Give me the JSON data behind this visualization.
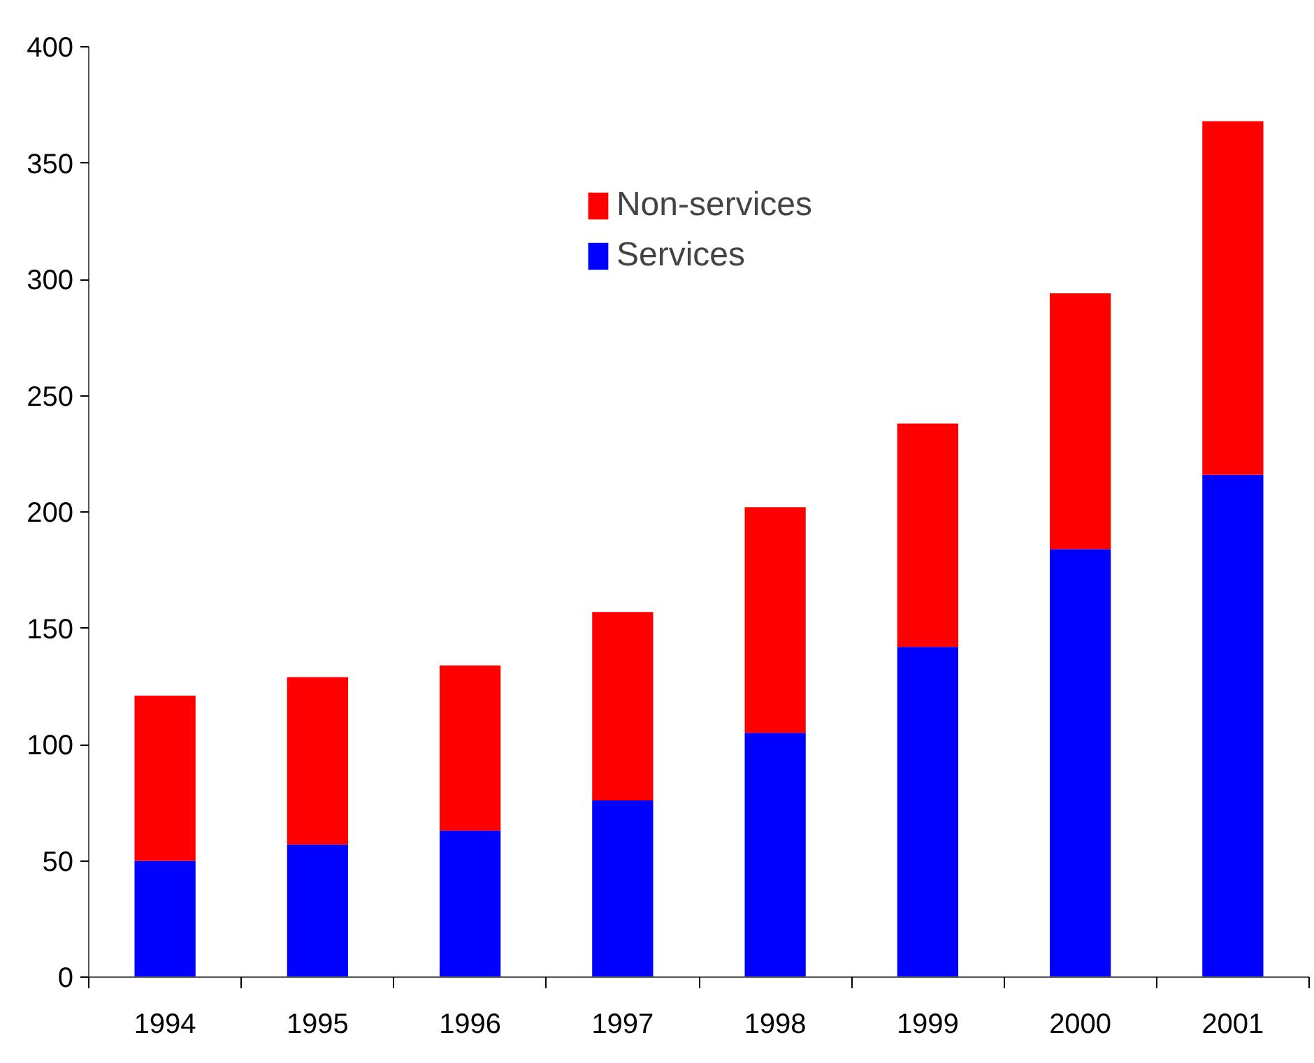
{
  "chart_data": {
    "type": "bar",
    "stacked": true,
    "categories": [
      "1994",
      "1995",
      "1996",
      "1997",
      "1998",
      "1999",
      "2000",
      "2001"
    ],
    "series": [
      {
        "name": "Services",
        "color": "#0000ff",
        "values": [
          50,
          57,
          63,
          76,
          105,
          142,
          184,
          216
        ]
      },
      {
        "name": "Non-services",
        "color": "#ff0000",
        "values": [
          71,
          72,
          71,
          81,
          97,
          96,
          110,
          152
        ]
      }
    ],
    "ylim": [
      0,
      400
    ],
    "yticks": [
      0,
      50,
      100,
      150,
      200,
      250,
      300,
      350,
      400
    ],
    "grid": false,
    "legend": "top center"
  }
}
